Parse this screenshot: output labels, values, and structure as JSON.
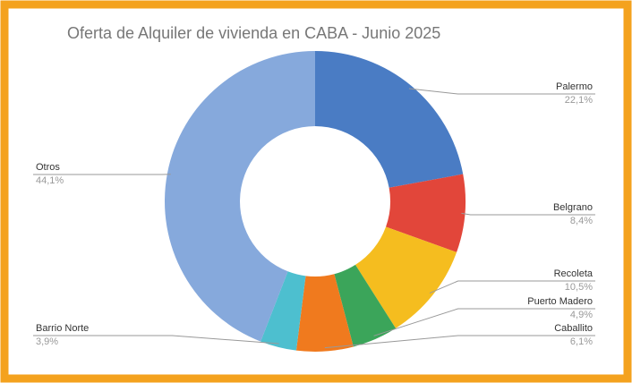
{
  "chart_data": {
    "type": "donut",
    "title": "Oferta de Alquiler de vivienda en CABA - Junio 2025",
    "categories": [
      "Palermo",
      "Belgrano",
      "Recoleta",
      "Puerto Madero",
      "Caballito",
      "Barrio Norte",
      "Otros"
    ],
    "values": [
      22.1,
      8.4,
      10.5,
      4.9,
      6.1,
      3.9,
      44.1
    ],
    "value_labels": [
      "22,1%",
      "8,4%",
      "10,5%",
      "4,9%",
      "6,1%",
      "3,9%",
      "44,1%"
    ],
    "colors": [
      "#4a7cc4",
      "#e2463a",
      "#f5bd1f",
      "#3ba55a",
      "#f07a1e",
      "#4dbfcf",
      "#86a9dc"
    ]
  }
}
